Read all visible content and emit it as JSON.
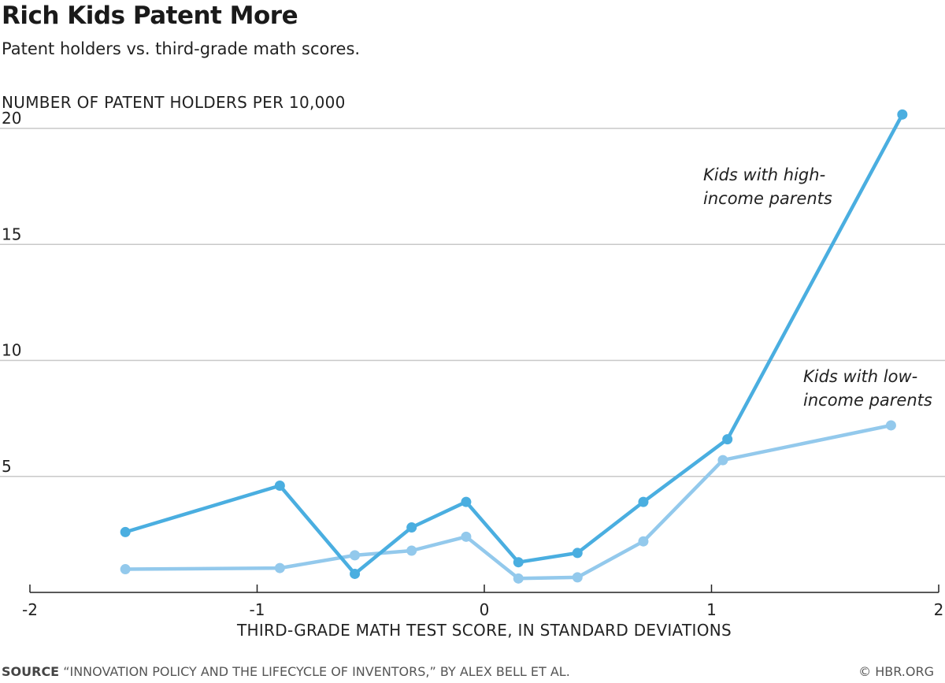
{
  "header": {
    "title": "Rich Kids Patent More",
    "subtitle": "Patent holders vs. third-grade math scores."
  },
  "footer": {
    "source_key": "SOURCE",
    "source_text": "“INNOVATION POLICY AND THE LIFECYCLE OF INVENTORS,” BY ALEX BELL ET AL.",
    "credit": "© HBR.ORG"
  },
  "colors": {
    "high_income": "#4aaee0",
    "low_income": "#93c9ec",
    "grid": "#c8c8c8",
    "axis": "#222222"
  },
  "chart_data": {
    "type": "line",
    "title": "Rich Kids Patent More",
    "subtitle": "Patent holders vs. third-grade math scores.",
    "xlabel": "THIRD-GRADE MATH TEST SCORE, IN STANDARD DEVIATIONS",
    "ylabel": "NUMBER OF PATENT HOLDERS PER 10,000",
    "xlim": [
      -2,
      2
    ],
    "ylim": [
      0,
      20
    ],
    "x_ticks": [
      -2,
      -1,
      0,
      1,
      2
    ],
    "x_tick_labels": [
      "-2",
      "-1",
      "0",
      "1",
      "2"
    ],
    "y_ticks": [
      5,
      10,
      15,
      20
    ],
    "y_tick_labels": [
      "5",
      "10",
      "15",
      "20"
    ],
    "grid": "horizontal",
    "series": [
      {
        "name": "Kids with high-income parents",
        "label_lines": [
          "Kids with high-",
          "income parents"
        ],
        "color": "#4aaee0",
        "points": [
          {
            "x": -1.58,
            "y": 2.6
          },
          {
            "x": -0.9,
            "y": 4.6
          },
          {
            "x": -0.57,
            "y": 0.8
          },
          {
            "x": -0.32,
            "y": 2.8
          },
          {
            "x": -0.08,
            "y": 3.9
          },
          {
            "x": 0.15,
            "y": 1.3
          },
          {
            "x": 0.41,
            "y": 1.7
          },
          {
            "x": 0.7,
            "y": 3.9
          },
          {
            "x": 1.07,
            "y": 6.6
          },
          {
            "x": 1.84,
            "y": 20.6
          }
        ]
      },
      {
        "name": "Kids with low-income parents",
        "label_lines": [
          "Kids with low-",
          "income parents"
        ],
        "color": "#93c9ec",
        "points": [
          {
            "x": -1.58,
            "y": 1.0
          },
          {
            "x": -0.9,
            "y": 1.05
          },
          {
            "x": -0.57,
            "y": 1.6
          },
          {
            "x": -0.32,
            "y": 1.8
          },
          {
            "x": -0.08,
            "y": 2.4
          },
          {
            "x": 0.15,
            "y": 0.6
          },
          {
            "x": 0.41,
            "y": 0.65
          },
          {
            "x": 0.7,
            "y": 2.2
          },
          {
            "x": 1.05,
            "y": 5.7
          },
          {
            "x": 1.79,
            "y": 7.2
          }
        ]
      }
    ]
  }
}
